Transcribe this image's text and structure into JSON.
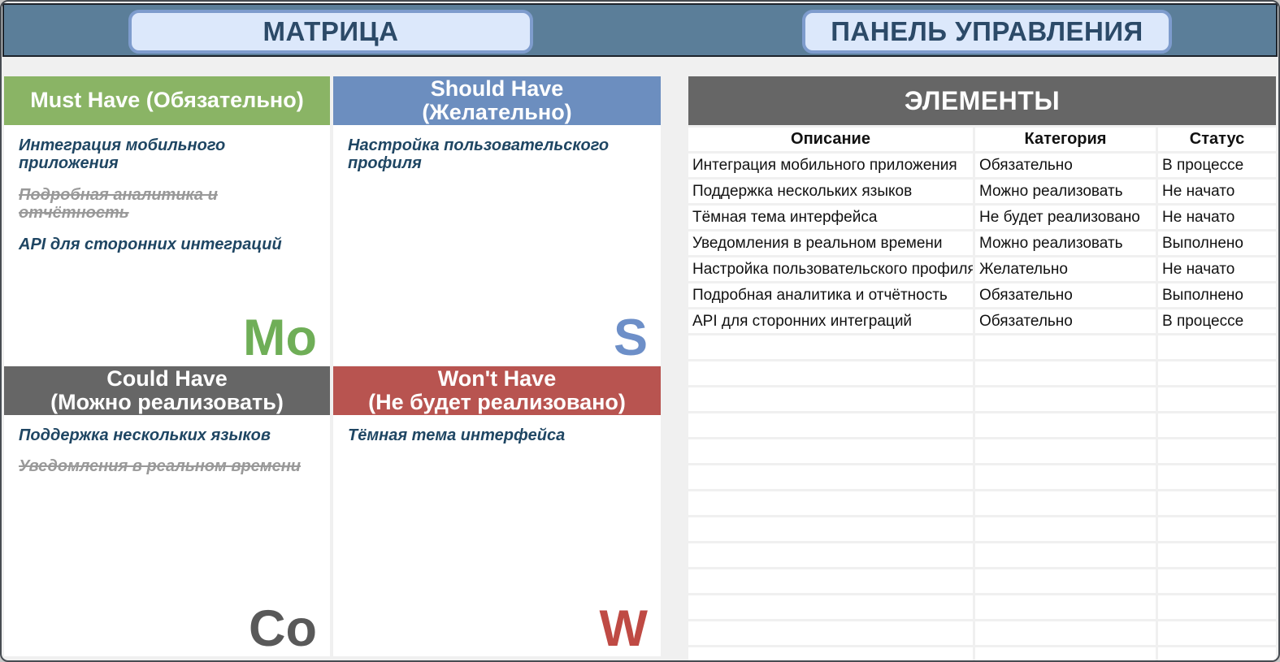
{
  "header": {
    "matrix_title": "МАТРИЦА",
    "panel_title": "ПАНЕЛЬ УПРАВЛЕНИЯ"
  },
  "matrix": {
    "quadrants": {
      "must": {
        "title_line1": "Must Have (Обязательно)",
        "title_line2": "",
        "letter": "Mo",
        "color": "#8ab465",
        "items": [
          {
            "text": "Интеграция мобильного приложения",
            "struck": false
          },
          {
            "text": "Подробная аналитика и отчётность",
            "struck": true
          },
          {
            "text": "API для сторонних интеграций",
            "struck": false
          }
        ]
      },
      "should": {
        "title_line1": "Should Have",
        "title_line2": "(Желательно)",
        "letter": "S",
        "color": "#6c8ebf",
        "items": [
          {
            "text": "Настройка пользовательского профиля",
            "struck": false
          }
        ]
      },
      "could": {
        "title_line1": "Could Have",
        "title_line2": "(Можно реализовать)",
        "letter": "Co",
        "color": "#666666",
        "items": [
          {
            "text": "Поддержка нескольких языков",
            "struck": false
          },
          {
            "text": "Уведомления в реальном времени",
            "struck": true
          }
        ]
      },
      "wont": {
        "title_line1": "Won't Have",
        "title_line2": "(Не будет реализовано)",
        "letter": "W",
        "color": "#b85450",
        "items": [
          {
            "text": "Тёмная тема интерфейса",
            "struck": false
          }
        ]
      }
    }
  },
  "panel": {
    "title": "ЭЛЕМЕНТЫ",
    "columns": [
      "Описание",
      "Категория",
      "Статус"
    ],
    "rows": [
      {
        "description": "Интеграция мобильного приложения",
        "category": "Обязательно",
        "status": "В процессе"
      },
      {
        "description": "Поддержка нескольких языков",
        "category": "Можно реализовать",
        "status": "Не начато"
      },
      {
        "description": "Тёмная тема интерфейса",
        "category": "Не будет реализовано",
        "status": "Не начато"
      },
      {
        "description": "Уведомления в реальном времени",
        "category": "Можно реализовать",
        "status": "Выполнено"
      },
      {
        "description": "Настройка пользовательского профиля",
        "category": "Желательно",
        "status": "Не начато"
      },
      {
        "description": "Подробная аналитика и отчётность",
        "category": "Обязательно",
        "status": "Выполнено"
      },
      {
        "description": "API для сторонних интеграций",
        "category": "Обязательно",
        "status": "В процессе"
      },
      {
        "description": "",
        "category": "",
        "status": ""
      },
      {
        "description": "",
        "category": "",
        "status": ""
      },
      {
        "description": "",
        "category": "",
        "status": ""
      },
      {
        "description": "",
        "category": "",
        "status": ""
      },
      {
        "description": "",
        "category": "",
        "status": ""
      },
      {
        "description": "",
        "category": "",
        "status": ""
      },
      {
        "description": "",
        "category": "",
        "status": ""
      },
      {
        "description": "",
        "category": "",
        "status": ""
      },
      {
        "description": "",
        "category": "",
        "status": ""
      },
      {
        "description": "",
        "category": "",
        "status": ""
      },
      {
        "description": "",
        "category": "",
        "status": ""
      },
      {
        "description": "",
        "category": "",
        "status": ""
      },
      {
        "description": "",
        "category": "",
        "status": ""
      }
    ]
  },
  "colors": {
    "topbar_background": "#5b7e99",
    "title_box_background": "#dce8fb",
    "title_box_border": "#7e9ccd",
    "title_text": "#2c4a68",
    "must_green": "#8ab465",
    "should_blue": "#6c8ebf",
    "could_gray": "#666666",
    "wont_red": "#b85450",
    "item_text": "#1f4663",
    "struck_text": "#999999",
    "panel_header_background": "#666666",
    "page_background": "#f0f0f0"
  }
}
